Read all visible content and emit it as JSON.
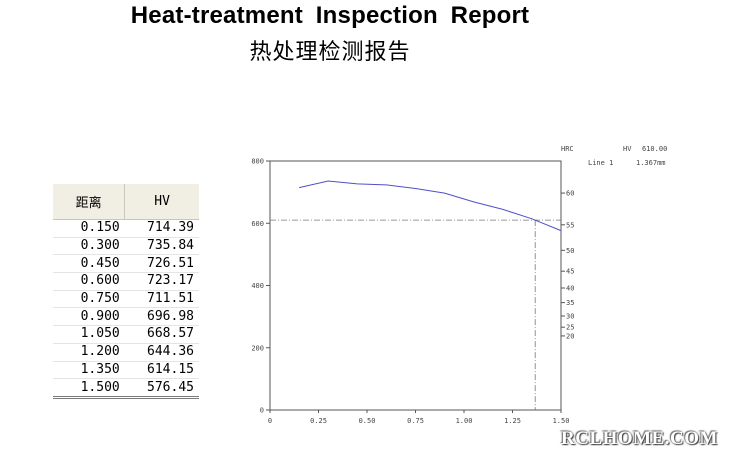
{
  "title_en": "Heat-treatment  Inspection  Report",
  "title_cn": "热处理检测报告",
  "table": {
    "headers": [
      "距离",
      "HV"
    ],
    "rows": [
      [
        "0.150",
        "714.39"
      ],
      [
        "0.300",
        "735.84"
      ],
      [
        "0.450",
        "726.51"
      ],
      [
        "0.600",
        "723.17"
      ],
      [
        "0.750",
        "711.51"
      ],
      [
        "0.900",
        "696.98"
      ],
      [
        "1.050",
        "668.57"
      ],
      [
        "1.200",
        "644.36"
      ],
      [
        "1.350",
        "614.15"
      ],
      [
        "1.500",
        "576.45"
      ]
    ]
  },
  "chart_data": {
    "type": "line",
    "x": [
      0.15,
      0.3,
      0.45,
      0.6,
      0.75,
      0.9,
      1.05,
      1.2,
      1.35,
      1.5
    ],
    "series": [
      {
        "values": [
          714.39,
          735.84,
          726.51,
          723.17,
          711.51,
          696.98,
          668.57,
          644.36,
          614.15,
          576.45
        ]
      }
    ],
    "xlim": [
      0,
      1.5
    ],
    "ylim": [
      0,
      800
    ],
    "x_ticks": [
      "0",
      "0.25",
      "0.50",
      "0.75",
      "1.00",
      "1.25",
      "1.50"
    ],
    "y_ticks": [
      "0",
      "200",
      "400",
      "600",
      "800"
    ],
    "right_axis_label": "HRC",
    "right_ticks": [
      {
        "label": "60",
        "hv": 697
      },
      {
        "label": "55",
        "hv": 595
      },
      {
        "label": "50",
        "hv": 513
      },
      {
        "label": "45",
        "hv": 446
      },
      {
        "label": "40",
        "hv": 392
      },
      {
        "label": "35",
        "hv": 345
      },
      {
        "label": "30",
        "hv": 302
      },
      {
        "label": "25",
        "hv": 266
      },
      {
        "label": "20",
        "hv": 238
      }
    ],
    "reference": {
      "hv": 610.0,
      "x": 1.367
    },
    "info": {
      "hv_label": "HV",
      "hv_value": "610.00",
      "line_label": "Line 1",
      "line_value": "1.367mm"
    },
    "line_color": "#5050c8",
    "grid": false
  },
  "watermark": "RCLHOME.COM"
}
